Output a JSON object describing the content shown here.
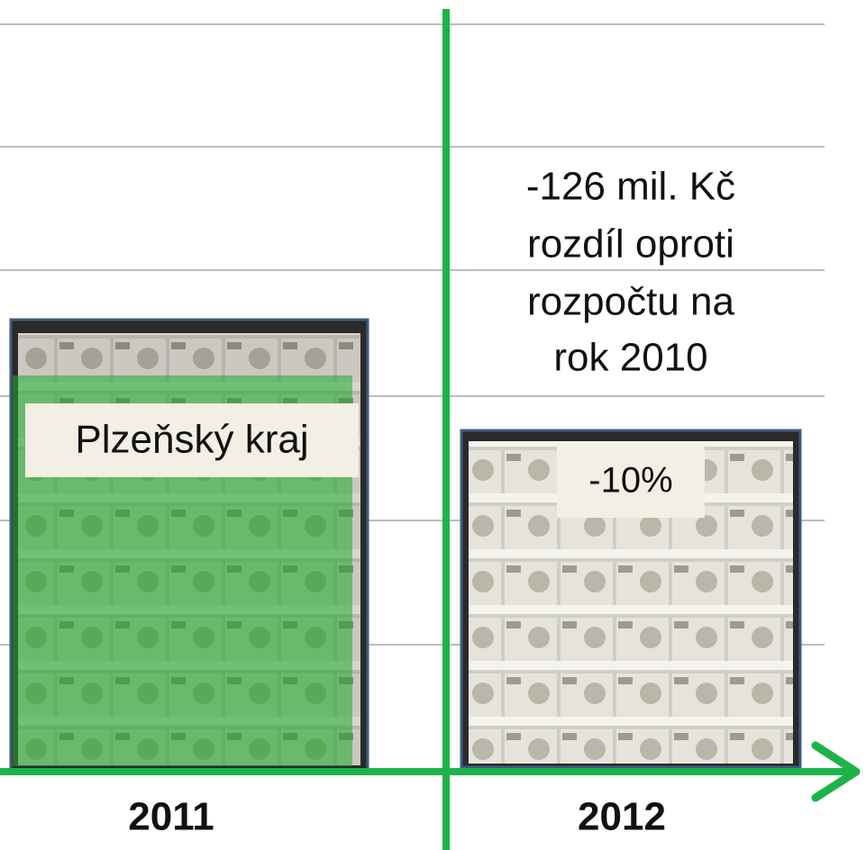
{
  "slide": {
    "annotation": [
      "-126 mil. Kč",
      "rozdíl oproti",
      "rozpočtu na",
      "rok 2010"
    ],
    "left": {
      "year": "2011",
      "label": "Plzeňský kraj"
    },
    "right": {
      "year": "2012",
      "label": "-10%"
    }
  }
}
